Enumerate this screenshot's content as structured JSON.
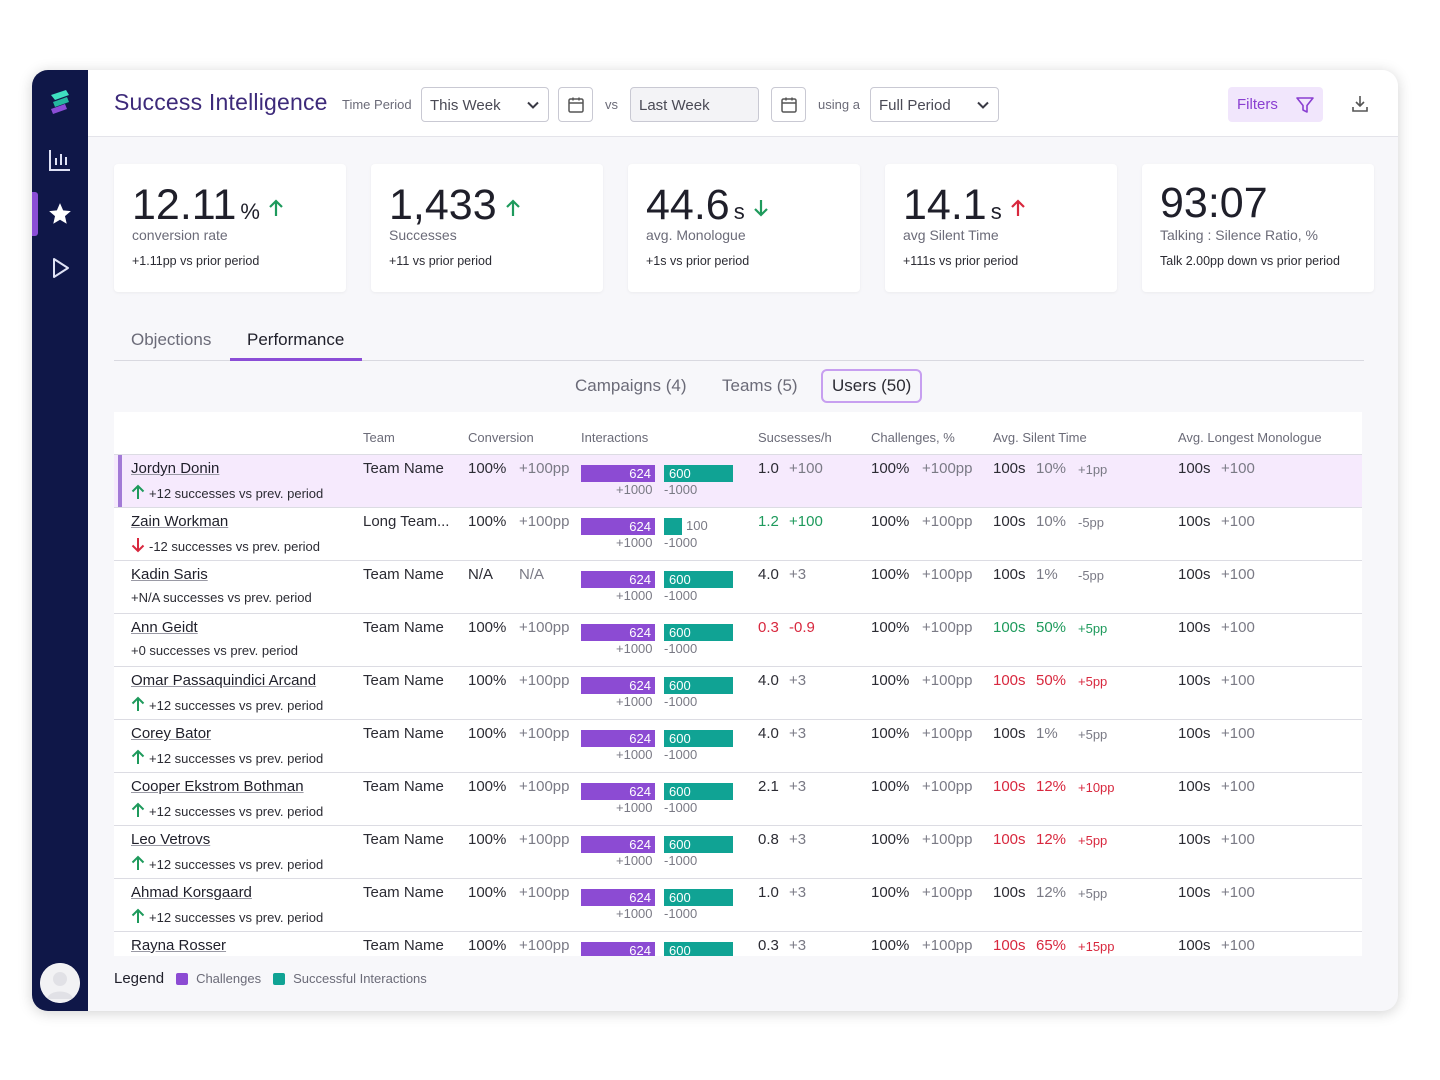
{
  "app": {
    "title": "Success Intelligence"
  },
  "header": {
    "time_period_label": "Time Period",
    "time_period_value": "This Week",
    "vs_label": "vs",
    "compare_value": "Last Week",
    "using_label": "using a",
    "mode_value": "Full Period",
    "filters_label": "Filters"
  },
  "kpis": [
    {
      "value": "12.11",
      "unit": "%",
      "trend": "up",
      "label": "conversion rate",
      "sub": "+1.11pp vs prior period"
    },
    {
      "value": "1,433",
      "unit": "",
      "trend": "up",
      "label": "Successes",
      "sub": "+11 vs prior period"
    },
    {
      "value": "44.6",
      "unit": "s",
      "trend": "down-green",
      "label": "avg. Monologue",
      "sub": "+1s vs prior period"
    },
    {
      "value": "14.1",
      "unit": "s",
      "trend": "up-red",
      "label": "avg Silent Time",
      "sub": "+111s vs prior period"
    },
    {
      "value": "93:07",
      "unit": "",
      "trend": "none",
      "label": "Talking : Silence Ratio, %",
      "sub": "Talk 2.00pp down vs prior period"
    }
  ],
  "tabs": [
    "Objections",
    "Performance"
  ],
  "subtabs": [
    "Campaigns (4)",
    "Teams (5)",
    "Users (50)"
  ],
  "columns": [
    "Team",
    "Conversion",
    "Interactions",
    "Sucsesses/h",
    "Challenges, %",
    "Avg. Silent Time",
    "Avg. Longest Monologue"
  ],
  "rows": [
    {
      "name": "Jordyn Donin",
      "arrow": "up",
      "sub": "+12 successes vs prev. period",
      "team": "Team Name",
      "conv": "100%",
      "conv_d": "+100pp",
      "i1": "624",
      "i2": "600",
      "i1d": "+1000",
      "i2d": "-1000",
      "sph": "1.0",
      "sph_d": "+100",
      "sph_c": "",
      "ch": "100%",
      "ch_d": "+100pp",
      "st": "100s",
      "st_p": "10%",
      "st_d": "+1pp",
      "st_c": "",
      "lm": "100s",
      "lm_d": "+100"
    },
    {
      "name": "Zain Workman",
      "arrow": "down",
      "sub": "-12 successes vs prev. period",
      "team": "Long Team...",
      "conv": "100%",
      "conv_d": "+100pp",
      "i1": "624",
      "i2": "100",
      "i1d": "+1000",
      "i2d": "-1000",
      "sph": "1.2",
      "sph_d": "+100",
      "sph_c": "green",
      "ch": "100%",
      "ch_d": "+100pp",
      "st": "100s",
      "st_p": "10%",
      "st_d": "-5pp",
      "st_c": "",
      "lm": "100s",
      "lm_d": "+100"
    },
    {
      "name": "Kadin Saris",
      "arrow": "none",
      "sub": "+N/A successes vs prev. period",
      "team": "Team Name",
      "conv": "N/A",
      "conv_d": "N/A",
      "i1": "624",
      "i2": "600",
      "i1d": "+1000",
      "i2d": "-1000",
      "sph": "4.0",
      "sph_d": "+3",
      "sph_c": "",
      "ch": "100%",
      "ch_d": "+100pp",
      "st": "100s",
      "st_p": "1%",
      "st_d": "-5pp",
      "st_c": "",
      "lm": "100s",
      "lm_d": "+100"
    },
    {
      "name": "Ann Geidt",
      "arrow": "none",
      "sub": "+0 successes vs prev. period",
      "team": "Team Name",
      "conv": "100%",
      "conv_d": "+100pp",
      "i1": "624",
      "i2": "600",
      "i1d": "+1000",
      "i2d": "-1000",
      "sph": "0.3",
      "sph_d": "-0.9",
      "sph_c": "red",
      "ch": "100%",
      "ch_d": "+100pp",
      "st": "100s",
      "st_p": "50%",
      "st_d": "+5pp",
      "st_c": "green",
      "lm": "100s",
      "lm_d": "+100"
    },
    {
      "name": "Omar Passaquindici Arcand",
      "arrow": "up",
      "sub": "+12 successes vs prev. period",
      "team": "Team Name",
      "conv": "100%",
      "conv_d": "+100pp",
      "i1": "624",
      "i2": "600",
      "i1d": "+1000",
      "i2d": "-1000",
      "sph": "4.0",
      "sph_d": "+3",
      "sph_c": "",
      "ch": "100%",
      "ch_d": "+100pp",
      "st": "100s",
      "st_p": "50%",
      "st_d": "+5pp",
      "st_c": "red",
      "lm": "100s",
      "lm_d": "+100"
    },
    {
      "name": "Corey Bator",
      "arrow": "up",
      "sub": "+12 successes vs prev. period",
      "team": "Team Name",
      "conv": "100%",
      "conv_d": "+100pp",
      "i1": "624",
      "i2": "600",
      "i1d": "+1000",
      "i2d": "-1000",
      "sph": "4.0",
      "sph_d": "+3",
      "sph_c": "",
      "ch": "100%",
      "ch_d": "+100pp",
      "st": "100s",
      "st_p": "1%",
      "st_d": "+5pp",
      "st_c": "",
      "lm": "100s",
      "lm_d": "+100"
    },
    {
      "name": "Cooper Ekstrom Bothman",
      "arrow": "up",
      "sub": "+12 successes vs prev. period",
      "team": "Team Name",
      "conv": "100%",
      "conv_d": "+100pp",
      "i1": "624",
      "i2": "600",
      "i1d": "+1000",
      "i2d": "-1000",
      "sph": "2.1",
      "sph_d": "+3",
      "sph_c": "",
      "ch": "100%",
      "ch_d": "+100pp",
      "st": "100s",
      "st_p": "12%",
      "st_d": "+10pp",
      "st_c": "red",
      "lm": "100s",
      "lm_d": "+100"
    },
    {
      "name": "Leo Vetrovs",
      "arrow": "up",
      "sub": "+12 successes vs prev. period",
      "team": "Team Name",
      "conv": "100%",
      "conv_d": "+100pp",
      "i1": "624",
      "i2": "600",
      "i1d": "+1000",
      "i2d": "-1000",
      "sph": "0.8",
      "sph_d": "+3",
      "sph_c": "",
      "ch": "100%",
      "ch_d": "+100pp",
      "st": "100s",
      "st_p": "12%",
      "st_d": "+5pp",
      "st_c": "red",
      "lm": "100s",
      "lm_d": "+100"
    },
    {
      "name": "Ahmad Korsgaard",
      "arrow": "up",
      "sub": "+12 successes vs prev. period",
      "team": "Team Name",
      "conv": "100%",
      "conv_d": "+100pp",
      "i1": "624",
      "i2": "600",
      "i1d": "+1000",
      "i2d": "-1000",
      "sph": "1.0",
      "sph_d": "+3",
      "sph_c": "",
      "ch": "100%",
      "ch_d": "+100pp",
      "st": "100s",
      "st_p": "12%",
      "st_d": "+5pp",
      "st_c": "",
      "lm": "100s",
      "lm_d": "+100"
    },
    {
      "name": "Rayna Rosser",
      "arrow": "none",
      "sub": "",
      "team": "Team Name",
      "conv": "100%",
      "conv_d": "+100pp",
      "i1": "624",
      "i2": "600",
      "i1d": "",
      "i2d": "",
      "sph": "0.3",
      "sph_d": "+3",
      "sph_c": "",
      "ch": "100%",
      "ch_d": "+100pp",
      "st": "100s",
      "st_p": "65%",
      "st_d": "+15pp",
      "st_c": "red",
      "lm": "100s",
      "lm_d": "+100"
    }
  ],
  "legend": {
    "title": "Legend",
    "items": [
      "Challenges",
      "Successful Interactions"
    ]
  },
  "colors": {
    "sidebar": "#0f1748",
    "accent": "#8b4dd6",
    "challenges": "#8c4bd3",
    "success": "#10a394",
    "positive": "#1e9a5c",
    "negative": "#d8283e"
  }
}
